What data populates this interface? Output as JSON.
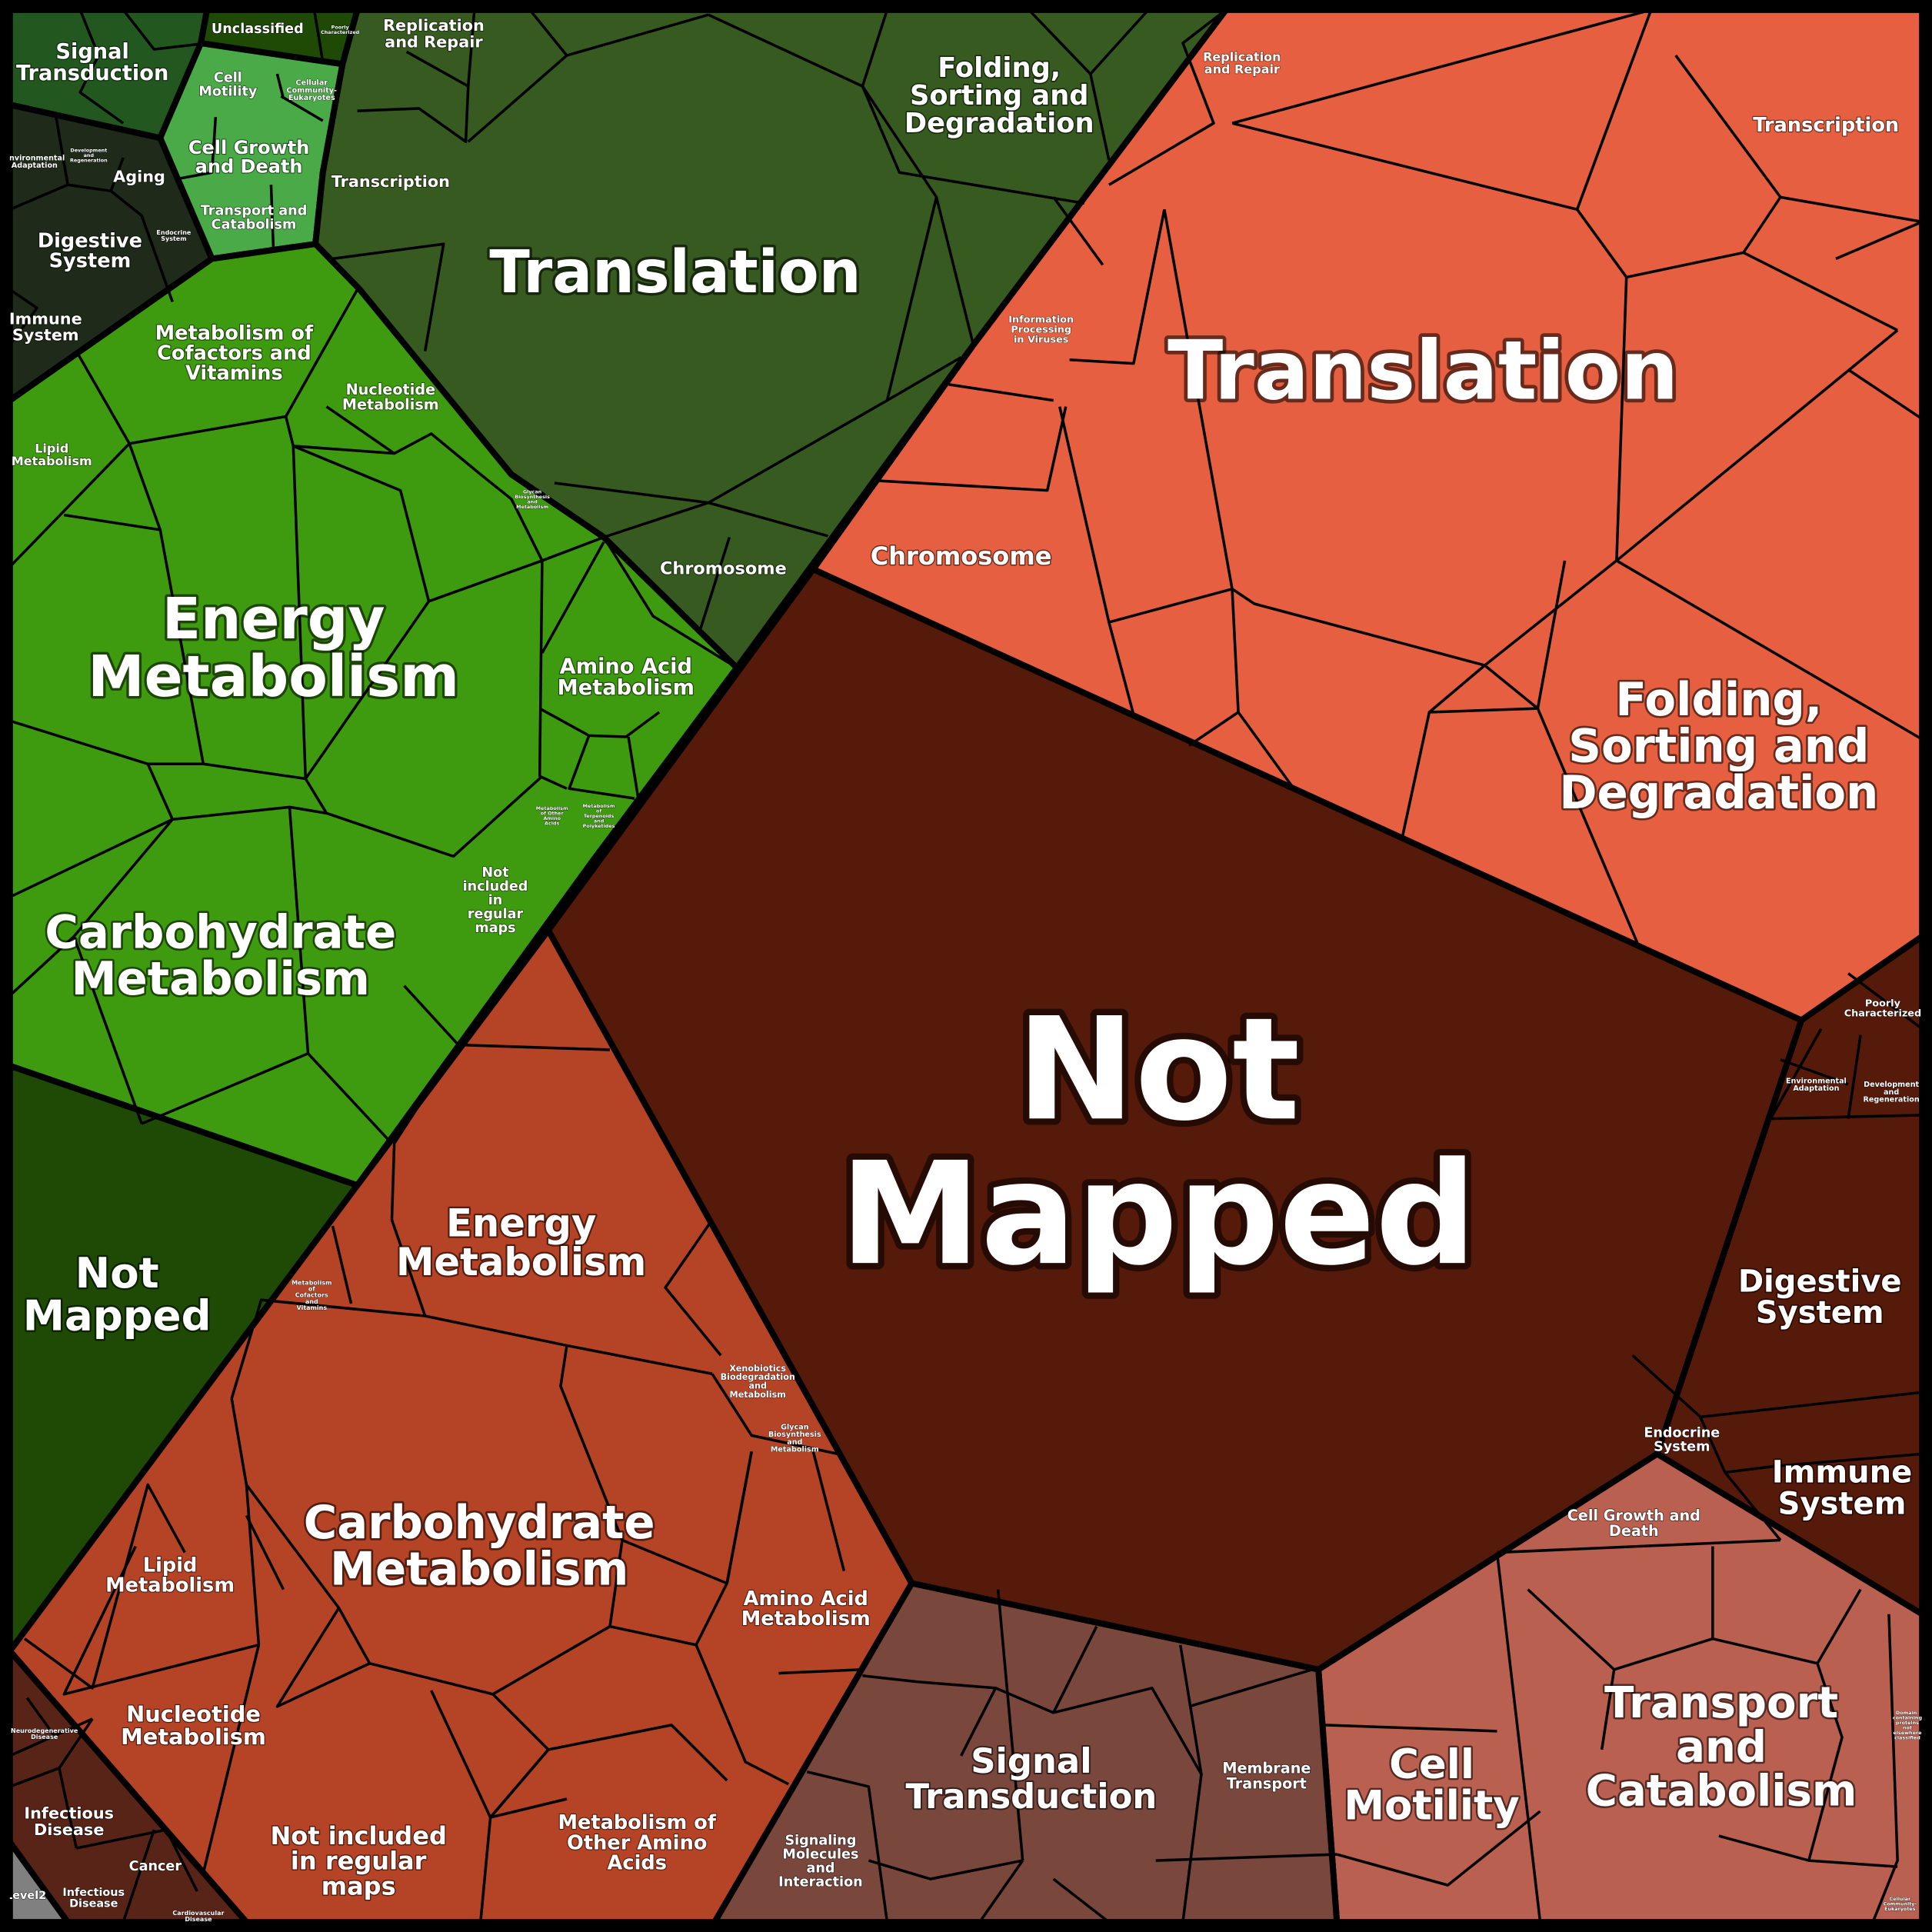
{
  "colors": {
    "green_signal": "#22581f",
    "green_cellular": "#4aaa48",
    "green_unclassified": "#1e4a05",
    "green_organismal": "#1f2a1a",
    "green_genetic": "#365a20",
    "green_metabolism": "#3e9a0e",
    "green_not_mapped": "#1e4a05",
    "red_metabolism": "#b54326",
    "red_disease": "#582418",
    "level2_gray": "#808080",
    "red_not_mapped": "#561a0a",
    "red_genetic": "#e55f40",
    "red_organismal": "#561a0b",
    "red_cellular": "#b96050",
    "red_environmental": "#7a473c"
  },
  "labels": {
    "g_signal": "Signal\nTransduction",
    "g_unclassified": "Unclassified",
    "g_poorly": "Poorly\nCharacterized",
    "g_replication": "Replication\nand Repair",
    "g_cell_motility": "Cell\nMotility",
    "g_cellular_community": "Cellular\nCommunity-\nEukaryotes",
    "g_cell_growth": "Cell Growth\nand Death",
    "g_transport": "Transport and\nCatabolism",
    "g_env_adapt": "Environmental\nAdaptation",
    "g_development": "Development\nand\nRegeneration",
    "g_aging": "Aging",
    "g_digestive": "Digestive\nSystem",
    "g_endocrine": "Endocrine\nSystem",
    "g_immune": "Immune\nSystem",
    "g_transcription": "Transcription",
    "g_translation": "Translation",
    "g_folding": "Folding,\nSorting and\nDegradation",
    "g_chromosome": "Chromosome",
    "g_cofactors": "Metabolism of\nCofactors and\nVitamins",
    "g_nucleotide": "Nucleotide\nMetabolism",
    "g_lipid": "Lipid\nMetabolism",
    "g_glycan": "Glycan\nBiosynthesis\nand\nMetabolism",
    "g_energy": "Energy\nMetabolism",
    "g_amino": "Amino Acid\nMetabolism",
    "g_other_amino": "Metabolism\nof Other\nAmino\nAcids",
    "g_terpenoids": "Metabolism\nof\nTerpenoids\nand\nPolyketides",
    "g_not_included": "Not\nincluded\nin\nregular\nmaps",
    "g_carbohydrate": "Carbohydrate\nMetabolism",
    "g_not_mapped": "Not\nMapped",
    "r_replication": "Replication\nand Repair",
    "r_transcription": "Transcription",
    "r_translation": "Translation",
    "r_viruses": "Information\nProcessing\nin Viruses",
    "r_chromosome": "Chromosome",
    "r_folding": "Folding,\nSorting and\nDegradation",
    "r_not_mapped": "Not\nMapped",
    "r_poorly": "Poorly\nCharacterized",
    "r_env_adapt": "Environmental\nAdaptation",
    "r_development": "Development\nand\nRegeneration",
    "r_digestive": "Digestive\nSystem",
    "r_endocrine": "Endocrine\nSystem",
    "r_immune": "Immune\nSystem",
    "r_cell_growth": "Cell Growth and\nDeath",
    "r_transport": "Transport\nand\nCatabolism",
    "r_cell_motility": "Cell\nMotility",
    "r_domain": "Domain-\ncontaining\nproteins\nnot\nelsewhere\nclassified",
    "r_cellular_community": "Cellular\nCommunity-\nEukaryotes",
    "r_membrane": "Membrane\nTransport",
    "r_signal": "Signal\nTransduction",
    "r_signaling_molecules": "Signaling\nMolecules\nand\nInteraction",
    "r_energy": "Energy\nMetabolism",
    "r_cofactors": "Metabolism\nof\nCofactors\nand\nVitamins",
    "r_xenobiotics": "Xenobiotics\nBiodegradation\nand\nMetabolism",
    "r_glycan": "Glycan\nBiosynthesis\nand\nMetabolism",
    "r_carbohydrate": "Carbohydrate\nMetabolism",
    "r_lipid": "Lipid\nMetabolism",
    "r_amino": "Amino Acid\nMetabolism",
    "r_nucleotide": "Nucleotide\nMetabolism",
    "r_not_included": "Not included\nin regular\nmaps",
    "r_other_amino": "Metabolism of\nOther Amino\nAcids",
    "r_neuro": "Neurodegenerative\nDisease",
    "r_infectious_1": "Infectious\nDisease",
    "r_cancer": "Cancer",
    "r_infectious_2": "Infectious\nDisease",
    "r_cardio": "Cardiovascular\nDisease",
    "level2": "Level2"
  }
}
